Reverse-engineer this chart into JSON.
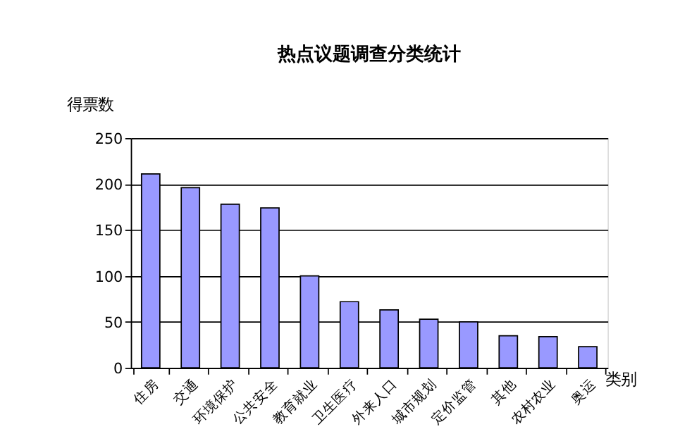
{
  "chart_data": {
    "type": "bar",
    "title": "热点议题调查分类统计",
    "xlabel": "类别",
    "ylabel": "得票数",
    "categories": [
      "住房",
      "交通",
      "环境保护",
      "公共安全",
      "教育就业",
      "卫生医疗",
      "外来人口",
      "城市规划",
      "定价监管",
      "其他",
      "农村农业",
      "奥运"
    ],
    "values": [
      211,
      196,
      178,
      174,
      100,
      72,
      63,
      53,
      50,
      35,
      34,
      23
    ],
    "color": "#9999ff",
    "ylim": [
      0,
      250
    ],
    "yticks": [
      0,
      50,
      100,
      150,
      200,
      250
    ],
    "grid": "y"
  }
}
